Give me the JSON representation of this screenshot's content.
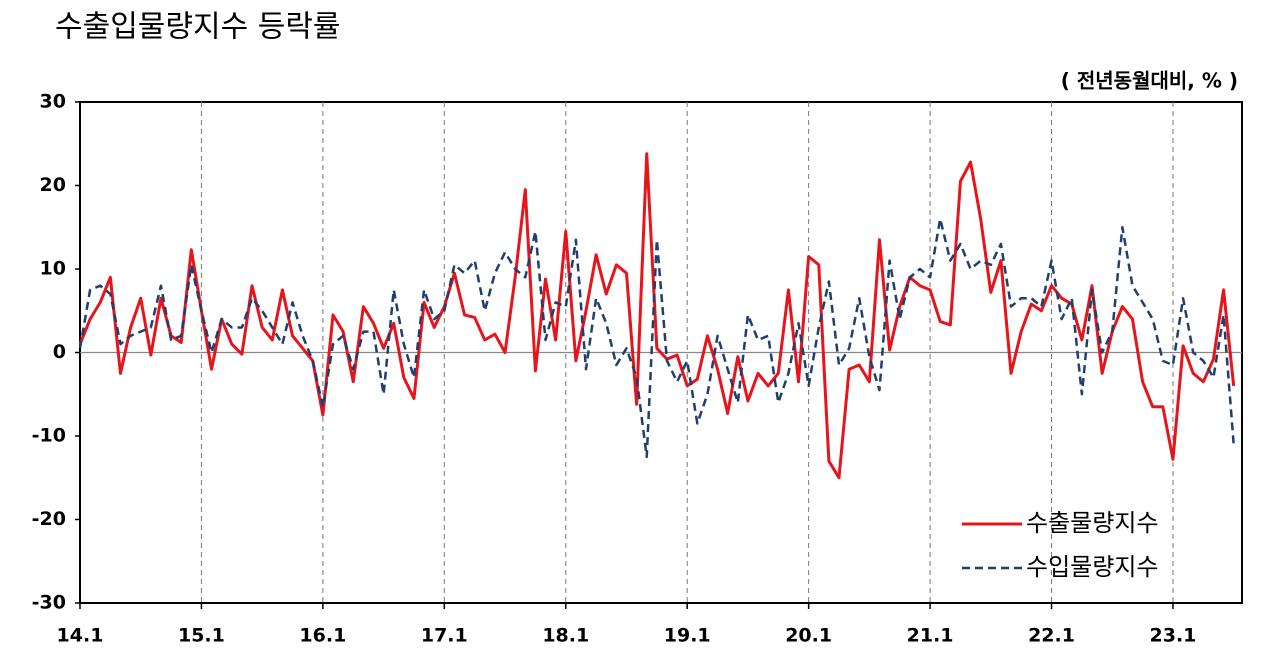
{
  "chart_data": {
    "type": "line",
    "title": "수출입물량지수 등락률",
    "y_label": "( 전년동월대비, % )",
    "categories": [
      "14.1",
      null,
      null,
      null,
      null,
      null,
      null,
      null,
      null,
      null,
      null,
      null,
      "15.1",
      null,
      null,
      null,
      null,
      null,
      null,
      null,
      null,
      null,
      null,
      null,
      "16.1",
      null,
      null,
      null,
      null,
      null,
      null,
      null,
      null,
      null,
      null,
      null,
      "17.1",
      null,
      null,
      null,
      null,
      null,
      null,
      null,
      null,
      null,
      null,
      null,
      "18.1",
      null,
      null,
      null,
      null,
      null,
      null,
      null,
      null,
      null,
      null,
      null,
      "19.1",
      null,
      null,
      null,
      null,
      null,
      null,
      null,
      null,
      null,
      null,
      null,
      "20.1",
      null,
      null,
      null,
      null,
      null,
      null,
      null,
      null,
      null,
      null,
      null,
      "21.1",
      null,
      null,
      null,
      null,
      null,
      null,
      null,
      null,
      null,
      null,
      null,
      "22.1",
      null,
      null,
      null,
      null,
      null,
      null,
      null,
      null,
      null,
      null,
      null,
      "23.1",
      null,
      null,
      null,
      null,
      null,
      null
    ],
    "series": [
      {
        "name": "수출물량지수",
        "color": "#e8141b",
        "line_style": "solid",
        "values": [
          1,
          4,
          6,
          9,
          -2.5,
          3,
          6.5,
          -0.3,
          6.5,
          2,
          1.2,
          12.3,
          5,
          -2,
          4,
          1,
          -0.2,
          8,
          3,
          1.5,
          7.5,
          2,
          0.5,
          -1,
          -7.5,
          4.5,
          2.5,
          -3.5,
          5.5,
          3.5,
          0.5,
          3.5,
          -3,
          -5.5,
          6,
          3,
          5.5,
          9.5,
          4.5,
          4.2,
          1.5,
          2.2,
          0,
          9,
          19.5,
          -2.2,
          8.8,
          1.5,
          14.5,
          -1,
          5,
          11.7,
          7,
          10.5,
          9.5,
          -6.2,
          23.8,
          0.5,
          -0.8,
          -0.3,
          -4,
          -3.2,
          2,
          -2,
          -7.3,
          -0.5,
          -5.8,
          -2.5,
          -4,
          -2.5,
          7.5,
          -3.5,
          11.5,
          10.5,
          -13,
          -15,
          -2,
          -1.5,
          -3.5,
          13.5,
          0.3,
          5.5,
          9,
          8,
          7.5,
          3.7,
          3.3,
          20.5,
          22.8,
          16,
          7.2,
          11,
          -2.5,
          2.5,
          5.8,
          5,
          8,
          6.5,
          5.8,
          1.5,
          8,
          -2.5,
          2.5,
          5.5,
          4,
          -3.5,
          -6.5,
          -6.5,
          -12.8,
          0.8,
          -2.5,
          -3.5,
          -0.8,
          7.5,
          -4
        ]
      },
      {
        "name": "수입물량지수",
        "color": "#1f3f6e",
        "line_style": "dashed",
        "values": [
          0.5,
          7.5,
          8,
          7,
          1,
          2,
          2.5,
          3,
          8,
          1.5,
          2,
          10.5,
          5,
          0,
          4,
          3,
          3,
          6.5,
          5,
          3,
          1,
          6,
          2,
          -1,
          -6.5,
          1,
          2,
          -2,
          2.5,
          2.5,
          -5,
          7.5,
          1,
          -3,
          7.5,
          4,
          5,
          10.5,
          9.5,
          11,
          5,
          9.5,
          12,
          10,
          9,
          14.5,
          1.5,
          6,
          5.5,
          13.5,
          -2,
          6.5,
          3.5,
          -1.5,
          0.5,
          -3,
          -12.5,
          13.5,
          -1,
          -3.5,
          -1,
          -8.5,
          -5,
          2,
          -2,
          -6,
          4.5,
          1.5,
          2,
          -6,
          -2.5,
          3.5,
          -4,
          3,
          8.5,
          -1.5,
          0.5,
          6.5,
          -0.5,
          -4.5,
          11,
          4,
          9,
          10,
          9,
          16,
          11,
          13,
          10,
          11,
          10.5,
          13,
          5.5,
          6.5,
          6.5,
          5.5,
          11,
          4,
          6.5,
          -5,
          7.5,
          0,
          2.5,
          15,
          8,
          6,
          4,
          -1,
          -1.5,
          6.5,
          0,
          -1,
          -3,
          4.5,
          -11
        ]
      }
    ],
    "ylim": [
      -30,
      30
    ],
    "yticks": [
      -30,
      -20,
      -10,
      0,
      10,
      20,
      30
    ],
    "grid": true,
    "legend": "lower right"
  }
}
